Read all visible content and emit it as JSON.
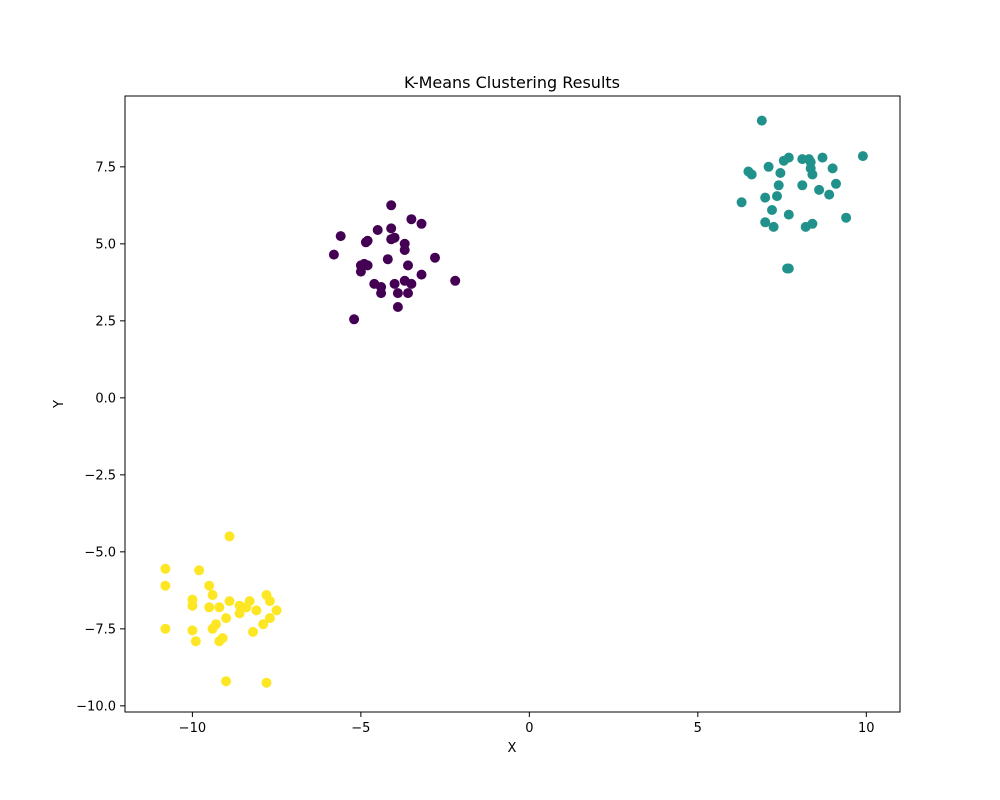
{
  "chart_data": {
    "type": "scatter",
    "title": "K-Means Clustering Results",
    "xlabel": "X",
    "ylabel": "Y",
    "xlim": [
      -12,
      11
    ],
    "ylim": [
      -10.2,
      9.8
    ],
    "xticks": [
      -10,
      -5,
      0,
      5,
      10
    ],
    "xtick_labels": [
      "−10",
      "−5",
      "0",
      "5",
      "10"
    ],
    "yticks": [
      -10.0,
      -7.5,
      -5.0,
      -2.5,
      0.0,
      2.5,
      5.0,
      7.5
    ],
    "ytick_labels": [
      "−10.0",
      "−7.5",
      "−5.0",
      "−2.5",
      "0.0",
      "2.5",
      "5.0",
      "7.5"
    ],
    "grid": false,
    "legend": false,
    "series": [
      {
        "color": "#440154",
        "points": [
          [
            -4.1,
            6.25
          ],
          [
            -3.5,
            5.8
          ],
          [
            -3.2,
            5.65
          ],
          [
            -4.1,
            5.5
          ],
          [
            -4.5,
            5.45
          ],
          [
            -5.6,
            5.25
          ],
          [
            -4.0,
            5.2
          ],
          [
            -4.1,
            5.15
          ],
          [
            -4.8,
            5.1
          ],
          [
            -3.7,
            5.0
          ],
          [
            -4.85,
            5.05
          ],
          [
            -3.7,
            4.8
          ],
          [
            -5.8,
            4.65
          ],
          [
            -2.8,
            4.55
          ],
          [
            -4.2,
            4.5
          ],
          [
            -3.6,
            4.3
          ],
          [
            -4.9,
            4.35
          ],
          [
            -4.8,
            4.3
          ],
          [
            -5.0,
            4.3
          ],
          [
            -5.0,
            4.1
          ],
          [
            -3.2,
            4.0
          ],
          [
            -3.7,
            3.8
          ],
          [
            -2.2,
            3.8
          ],
          [
            -4.6,
            3.7
          ],
          [
            -4.0,
            3.7
          ],
          [
            -3.5,
            3.7
          ],
          [
            -4.4,
            3.6
          ],
          [
            -4.4,
            3.4
          ],
          [
            -3.9,
            3.4
          ],
          [
            -3.6,
            3.4
          ],
          [
            -3.9,
            2.95
          ],
          [
            -5.2,
            2.55
          ]
        ]
      },
      {
        "color": "#21918c",
        "points": [
          [
            6.9,
            9.0
          ],
          [
            9.9,
            7.85
          ],
          [
            7.7,
            7.8
          ],
          [
            8.1,
            7.75
          ],
          [
            8.3,
            7.75
          ],
          [
            8.7,
            7.8
          ],
          [
            7.55,
            7.7
          ],
          [
            8.35,
            7.65
          ],
          [
            7.1,
            7.5
          ],
          [
            8.35,
            7.45
          ],
          [
            9.0,
            7.45
          ],
          [
            6.5,
            7.35
          ],
          [
            6.6,
            7.25
          ],
          [
            7.45,
            7.3
          ],
          [
            8.4,
            7.25
          ],
          [
            9.1,
            6.95
          ],
          [
            7.4,
            6.9
          ],
          [
            8.1,
            6.9
          ],
          [
            8.6,
            6.75
          ],
          [
            7.0,
            6.5
          ],
          [
            7.35,
            6.55
          ],
          [
            8.9,
            6.6
          ],
          [
            6.3,
            6.35
          ],
          [
            7.2,
            6.1
          ],
          [
            7.7,
            5.95
          ],
          [
            9.4,
            5.85
          ],
          [
            7.0,
            5.7
          ],
          [
            7.25,
            5.55
          ],
          [
            8.2,
            5.55
          ],
          [
            8.4,
            5.65
          ],
          [
            7.65,
            4.2
          ],
          [
            7.7,
            4.2
          ]
        ]
      },
      {
        "color": "#fde725",
        "points": [
          [
            -8.9,
            -4.5
          ],
          [
            -10.8,
            -5.55
          ],
          [
            -9.8,
            -5.6
          ],
          [
            -10.8,
            -6.1
          ],
          [
            -9.5,
            -6.1
          ],
          [
            -9.4,
            -6.4
          ],
          [
            -7.8,
            -6.4
          ],
          [
            -10.0,
            -6.55
          ],
          [
            -8.9,
            -6.6
          ],
          [
            -8.3,
            -6.6
          ],
          [
            -7.7,
            -6.6
          ],
          [
            -10.0,
            -6.75
          ],
          [
            -9.5,
            -6.8
          ],
          [
            -9.2,
            -6.8
          ],
          [
            -8.6,
            -6.75
          ],
          [
            -8.4,
            -6.8
          ],
          [
            -8.1,
            -6.9
          ],
          [
            -7.5,
            -6.9
          ],
          [
            -8.6,
            -7.0
          ],
          [
            -9.0,
            -7.15
          ],
          [
            -7.7,
            -7.15
          ],
          [
            -7.9,
            -7.35
          ],
          [
            -9.3,
            -7.35
          ],
          [
            -9.4,
            -7.5
          ],
          [
            -10.8,
            -7.5
          ],
          [
            -10.0,
            -7.55
          ],
          [
            -8.2,
            -7.6
          ],
          [
            -9.1,
            -7.8
          ],
          [
            -9.2,
            -7.9
          ],
          [
            -9.9,
            -7.9
          ],
          [
            -9.0,
            -9.2
          ],
          [
            -7.8,
            -9.25
          ]
        ]
      }
    ]
  }
}
